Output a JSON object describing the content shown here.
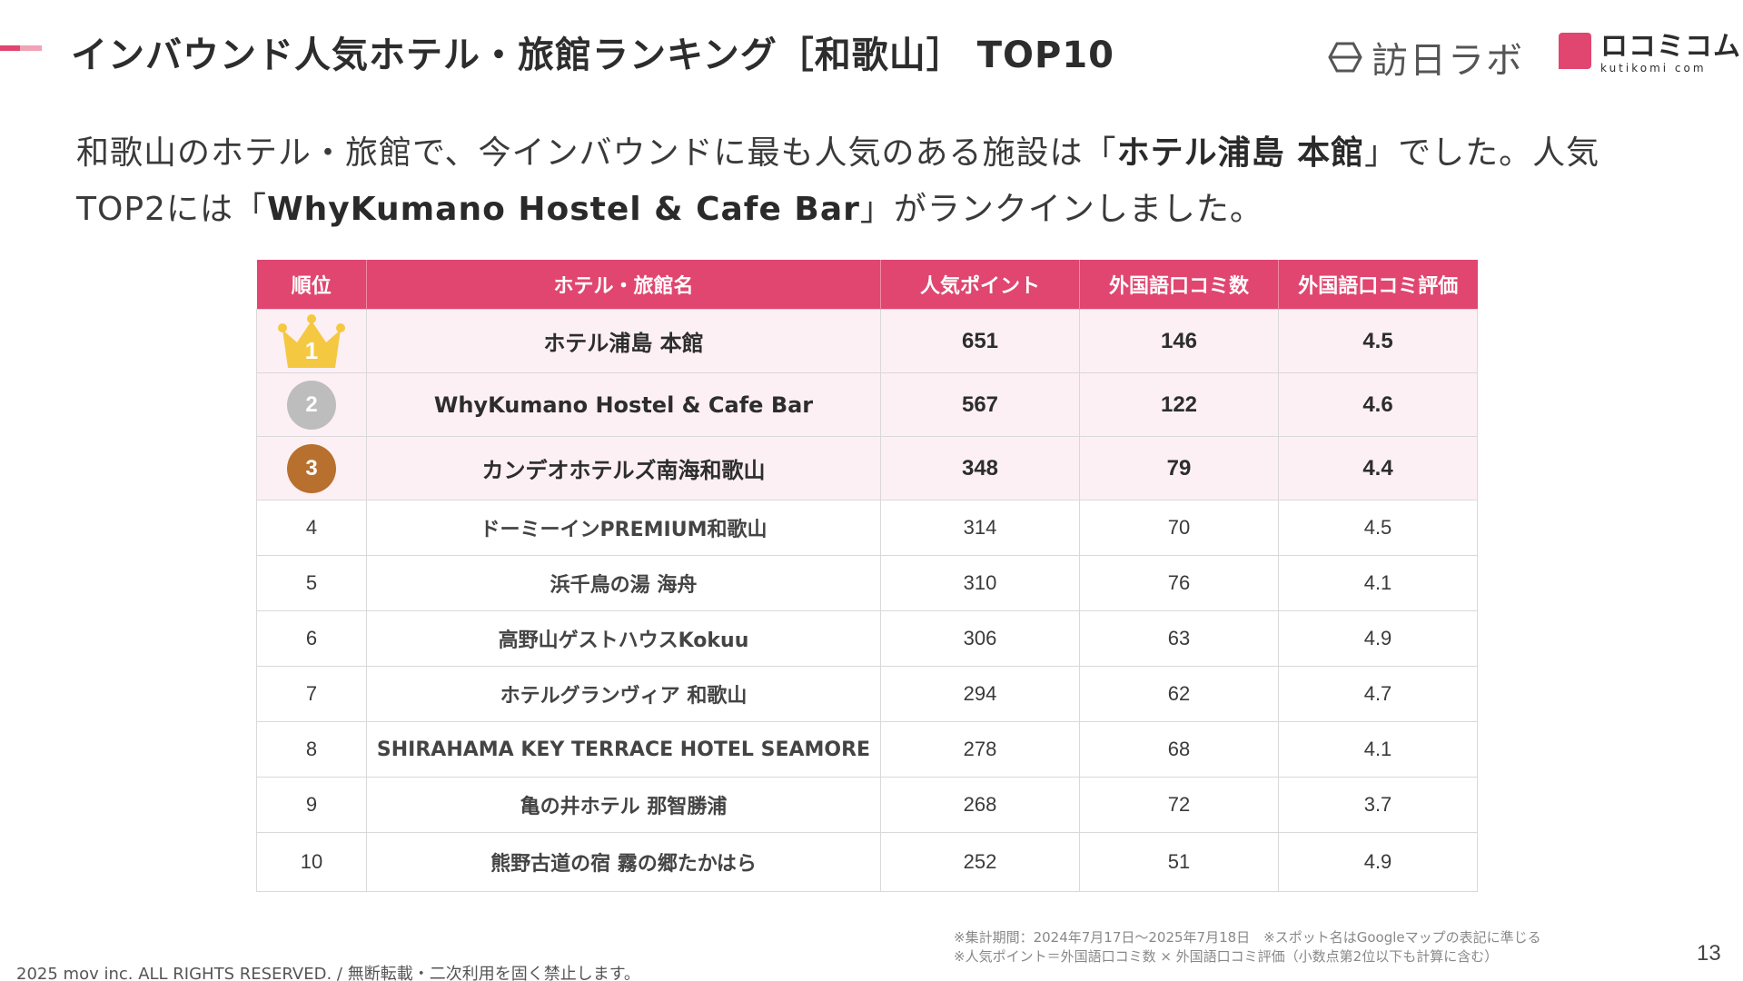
{
  "header": {
    "title": "インバウンド人気ホテル・旅館ランキング［和歌山］ TOP10",
    "brand_main": "訪日ラボ",
    "brand_kuchikomi": "ロコミコム",
    "brand_kuchikomi_en": "kutikomi com",
    "accent_color": "#e0466f"
  },
  "intro": {
    "part1": "和歌山のホテル・旅館で、今インバウンドに最も人気のある施設は「",
    "bold1": "ホテル浦島 本館",
    "part2": "」でした。人気TOP2には「",
    "bold2": "WhyKumano Hostel & Cafe Bar",
    "part3": "」がランクインしました。"
  },
  "table": {
    "columns": [
      "順位",
      "ホテル・旅館名",
      "人気ポイント",
      "外国語口コミ数",
      "外国語口コミ評価"
    ],
    "rows": [
      {
        "rank": "1",
        "name": "ホテル浦島 本館",
        "points": "651",
        "reviews": "146",
        "rating": "4.5"
      },
      {
        "rank": "2",
        "name": "WhyKumano Hostel & Cafe Bar",
        "points": "567",
        "reviews": "122",
        "rating": "4.6"
      },
      {
        "rank": "3",
        "name": "カンデオホテルズ南海和歌山",
        "points": "348",
        "reviews": "79",
        "rating": "4.4"
      },
      {
        "rank": "4",
        "name": "ドーミーインPREMIUM和歌山",
        "points": "314",
        "reviews": "70",
        "rating": "4.5"
      },
      {
        "rank": "5",
        "name": "浜千鳥の湯 海舟",
        "points": "310",
        "reviews": "76",
        "rating": "4.1"
      },
      {
        "rank": "6",
        "name": "高野山ゲストハウスKokuu",
        "points": "306",
        "reviews": "63",
        "rating": "4.9"
      },
      {
        "rank": "7",
        "name": "ホテルグランヴィア 和歌山",
        "points": "294",
        "reviews": "62",
        "rating": "4.7"
      },
      {
        "rank": "8",
        "name": "SHIRAHAMA KEY TERRACE HOTEL SEAMORE",
        "points": "278",
        "reviews": "68",
        "rating": "4.1"
      },
      {
        "rank": "9",
        "name": "亀の井ホテル 那智勝浦",
        "points": "268",
        "reviews": "72",
        "rating": "3.7"
      },
      {
        "rank": "10",
        "name": "熊野古道の宿 霧の郷たかはら",
        "points": "252",
        "reviews": "51",
        "rating": "4.9"
      }
    ],
    "medal_colors": {
      "gold": "#f5c842",
      "silver": "#bdbdbd",
      "bronze": "#b8702f"
    }
  },
  "footer": {
    "note1": "※集計期間：2024年7月17日〜2025年7月18日　※スポット名はGoogleマップの表記に準じる",
    "note2": "※人気ポイント＝外国語口コミ数 × 外国語口コミ評価（小数点第2位以下も計算に含む）",
    "copyright": "2025 mov inc. ALL RIGHTS RESERVED. / 無断転載・二次利用を固く禁止します。",
    "page_number": "13"
  }
}
